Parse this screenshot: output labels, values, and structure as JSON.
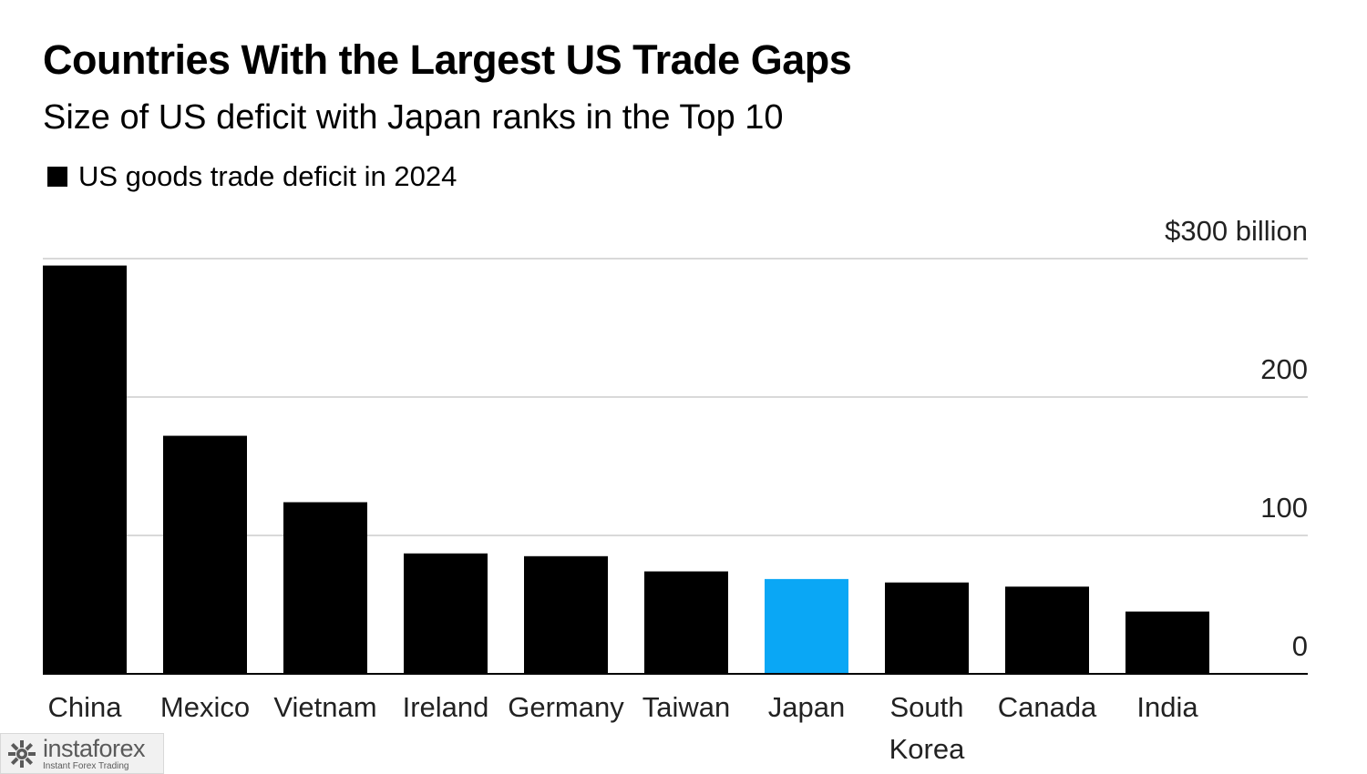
{
  "chart_data": {
    "type": "bar",
    "title": "Countries With the Largest US Trade Gaps",
    "subtitle": "Size of US deficit with Japan ranks in the Top 10",
    "legend": [
      "US goods trade deficit in 2024"
    ],
    "categories": [
      "China",
      "Mexico",
      "Vietnam",
      "Ireland",
      "Germany",
      "Taiwan",
      "Japan",
      "South Korea",
      "Canada",
      "India"
    ],
    "category_lines": [
      [
        "China"
      ],
      [
        "Mexico"
      ],
      [
        "Vietnam"
      ],
      [
        "Ireland"
      ],
      [
        "Germany"
      ],
      [
        "Taiwan"
      ],
      [
        "Japan"
      ],
      [
        "South",
        "Korea"
      ],
      [
        "Canada"
      ],
      [
        "India"
      ]
    ],
    "series": [
      {
        "name": "US goods trade deficit in 2024",
        "values": [
          295,
          172,
          124,
          87,
          85,
          74,
          68.5,
          66,
          63,
          45
        ]
      }
    ],
    "highlight_category": "Japan",
    "colors": {
      "default": "#000000",
      "highlight": "#0aa7f5",
      "grid": "#d9d9d9"
    },
    "y_ticks": [
      {
        "value": 0,
        "label": "0"
      },
      {
        "value": 100,
        "label": "100"
      },
      {
        "value": 200,
        "label": "200"
      },
      {
        "value": 300,
        "label": "$300 billion"
      }
    ],
    "ylim": [
      0,
      300
    ],
    "grid": true,
    "y_axis_side": "right",
    "legend_position": "top-left"
  },
  "watermark": {
    "brand": "instaforex",
    "tagline": "Instant Forex Trading"
  }
}
